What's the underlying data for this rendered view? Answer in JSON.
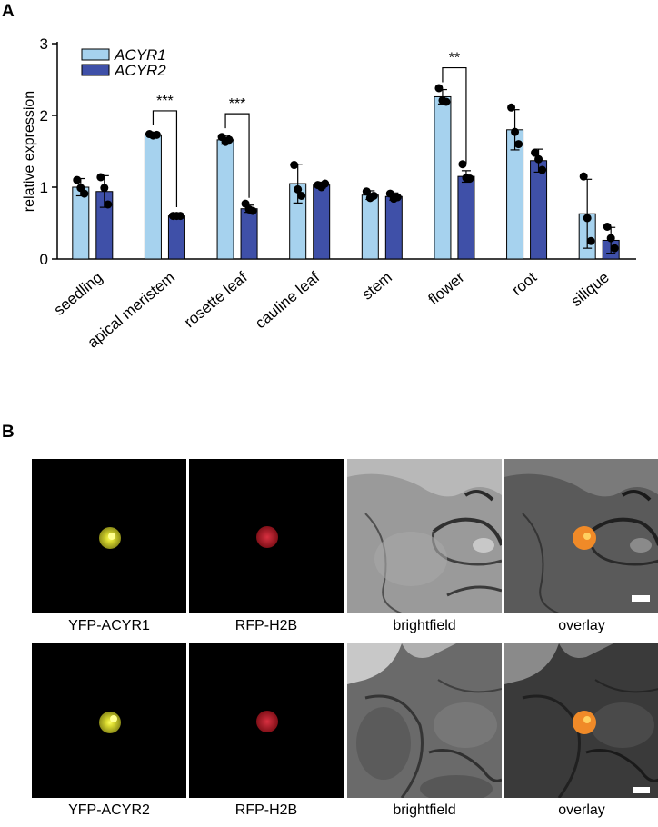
{
  "panel_a_label": "A",
  "panel_b_label": "B",
  "chart_data": {
    "type": "bar",
    "ylabel": "relative expression",
    "ylim": [
      0,
      3
    ],
    "yticks": [
      "0",
      "1",
      "2",
      "3"
    ],
    "categories": [
      "seedling",
      "apical meristem",
      "rosette leaf",
      "cauline leaf",
      "stem",
      "flower",
      "root",
      "silique"
    ],
    "series": [
      {
        "name": "ACYR1",
        "color": "#a6d2ee",
        "values": [
          1.0,
          1.73,
          1.66,
          1.05,
          0.89,
          2.26,
          1.8,
          0.63
        ],
        "errors": [
          0.12,
          0.03,
          0.06,
          0.27,
          0.06,
          0.1,
          0.28,
          0.48
        ],
        "points": [
          [
            1.1,
            0.99,
            0.91
          ],
          [
            1.74,
            1.72,
            1.73
          ],
          [
            1.7,
            1.63,
            1.66
          ],
          [
            1.31,
            0.97,
            0.88
          ],
          [
            0.94,
            0.85,
            0.88
          ],
          [
            2.38,
            2.21,
            2.19
          ],
          [
            2.11,
            1.77,
            1.6
          ],
          [
            1.15,
            0.57,
            0.25
          ]
        ]
      },
      {
        "name": "ACYR2",
        "color": "#3f50a8",
        "values": [
          0.94,
          0.6,
          0.7,
          1.03,
          0.87,
          1.15,
          1.37,
          0.26
        ],
        "errors": [
          0.22,
          0.02,
          0.05,
          0.04,
          0.05,
          0.08,
          0.16,
          0.18
        ],
        "points": [
          [
            1.14,
            0.99,
            0.76
          ],
          [
            0.6,
            0.6,
            0.6
          ],
          [
            0.77,
            0.69,
            0.67
          ],
          [
            1.03,
            1.0,
            1.05
          ],
          [
            0.91,
            0.84,
            0.86
          ],
          [
            1.32,
            1.13,
            1.12
          ],
          [
            1.48,
            1.39,
            1.24
          ],
          [
            0.45,
            0.29,
            0.15
          ]
        ]
      }
    ],
    "significance": [
      {
        "category": "apical meristem",
        "label": "***"
      },
      {
        "category": "rosette leaf",
        "label": "***"
      },
      {
        "category": "flower",
        "label": "**"
      }
    ],
    "legend_position": "top-left"
  },
  "micrographs": {
    "row1": [
      {
        "caption": "YFP-ACYR1",
        "kind": "yfp"
      },
      {
        "caption": "RFP-H2B",
        "kind": "rfp"
      },
      {
        "caption": "brightfield",
        "kind": "bf1"
      },
      {
        "caption": "overlay",
        "kind": "overlay1"
      }
    ],
    "row2": [
      {
        "caption": "YFP-ACYR2",
        "kind": "yfp"
      },
      {
        "caption": "RFP-H2B",
        "kind": "rfp"
      },
      {
        "caption": "brightfield",
        "kind": "bf2"
      },
      {
        "caption": "overlay",
        "kind": "overlay2"
      }
    ]
  },
  "colors": {
    "yfp": "#e8e830",
    "rfp": "#c0202a",
    "overlay": "#f08a28"
  }
}
